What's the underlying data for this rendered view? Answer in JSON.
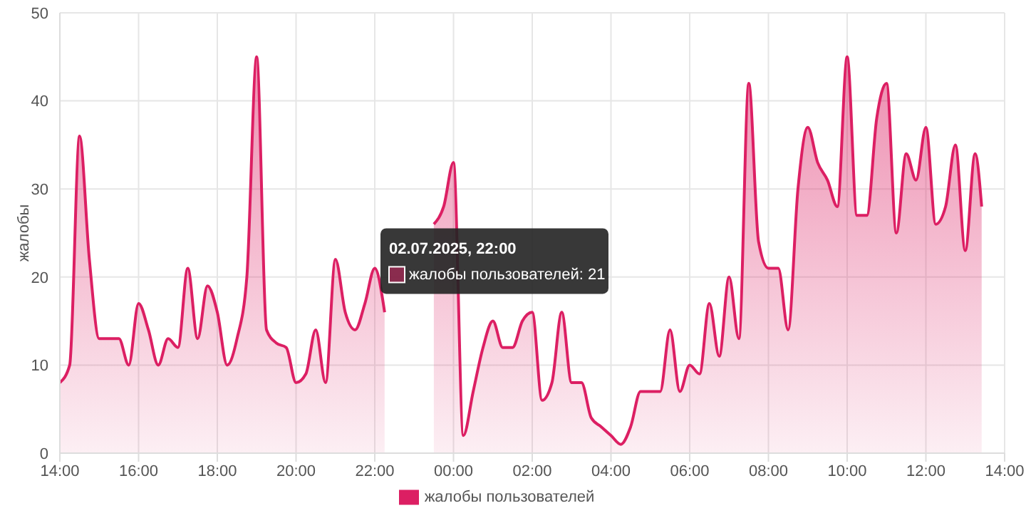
{
  "chart_data": {
    "type": "area",
    "ylabel": "жалобы",
    "x": [
      "2025-07-02T14:00",
      "2025-07-02T14:15",
      "2025-07-02T14:30",
      "2025-07-02T14:45",
      "2025-07-02T15:00",
      "2025-07-02T15:15",
      "2025-07-02T15:30",
      "2025-07-02T15:45",
      "2025-07-02T16:00",
      "2025-07-02T16:15",
      "2025-07-02T16:30",
      "2025-07-02T16:45",
      "2025-07-02T17:00",
      "2025-07-02T17:15",
      "2025-07-02T17:30",
      "2025-07-02T17:45",
      "2025-07-02T18:00",
      "2025-07-02T18:15",
      "2025-07-02T18:30",
      "2025-07-02T18:45",
      "2025-07-02T19:00",
      "2025-07-02T19:15",
      "2025-07-02T19:30",
      "2025-07-02T19:45",
      "2025-07-02T20:00",
      "2025-07-02T20:15",
      "2025-07-02T20:30",
      "2025-07-02T20:45",
      "2025-07-02T21:00",
      "2025-07-02T21:15",
      "2025-07-02T21:30",
      "2025-07-02T21:45",
      "2025-07-02T22:00",
      "2025-07-02T22:15",
      "2025-07-02T22:30",
      "2025-07-02T22:45",
      "2025-07-02T23:00",
      "2025-07-02T23:15",
      "2025-07-02T23:30",
      "2025-07-02T23:45",
      "2025-07-03T00:00",
      "2025-07-03T00:15",
      "2025-07-03T00:30",
      "2025-07-03T00:45",
      "2025-07-03T01:00",
      "2025-07-03T01:15",
      "2025-07-03T01:30",
      "2025-07-03T01:45",
      "2025-07-03T02:00",
      "2025-07-03T02:15",
      "2025-07-03T02:30",
      "2025-07-03T02:45",
      "2025-07-03T03:00",
      "2025-07-03T03:15",
      "2025-07-03T03:30",
      "2025-07-03T03:45",
      "2025-07-03T04:00",
      "2025-07-03T04:15",
      "2025-07-03T04:30",
      "2025-07-03T04:45",
      "2025-07-03T05:00",
      "2025-07-03T05:15",
      "2025-07-03T05:30",
      "2025-07-03T05:45",
      "2025-07-03T06:00",
      "2025-07-03T06:15",
      "2025-07-03T06:30",
      "2025-07-03T06:45",
      "2025-07-03T07:00",
      "2025-07-03T07:15",
      "2025-07-03T07:30",
      "2025-07-03T07:45",
      "2025-07-03T08:00",
      "2025-07-03T08:15",
      "2025-07-03T08:30",
      "2025-07-03T08:45",
      "2025-07-03T09:00",
      "2025-07-03T09:15",
      "2025-07-03T09:30",
      "2025-07-03T09:45",
      "2025-07-03T10:00",
      "2025-07-03T10:15",
      "2025-07-03T10:30",
      "2025-07-03T10:45",
      "2025-07-03T11:00",
      "2025-07-03T11:15",
      "2025-07-03T11:30",
      "2025-07-03T11:45",
      "2025-07-03T12:00",
      "2025-07-03T12:15",
      "2025-07-03T12:30",
      "2025-07-03T12:45",
      "2025-07-03T13:00",
      "2025-07-03T13:15",
      "2025-07-03T13:25"
    ],
    "series": [
      {
        "name": "жалобы пользователей",
        "color": "#dc1f63",
        "values": [
          8,
          10,
          36,
          22,
          13,
          13,
          13,
          10,
          17,
          14,
          10,
          13,
          12,
          21,
          13,
          19,
          16,
          10,
          13,
          20,
          45,
          14,
          12.5,
          12,
          8,
          9,
          14,
          8,
          22,
          16,
          14,
          17,
          21,
          16,
          null,
          null,
          null,
          null,
          26,
          28,
          33,
          2,
          7,
          12,
          15,
          12,
          12,
          15,
          16,
          6,
          8,
          16,
          8,
          8,
          4,
          3,
          2,
          1,
          3,
          7,
          7,
          7,
          14,
          7,
          10,
          9,
          17,
          11,
          20,
          13,
          42,
          24,
          21,
          21,
          14,
          30,
          37,
          33,
          31,
          28,
          45,
          27,
          27,
          38,
          42,
          25,
          34,
          31,
          37,
          26,
          28,
          35,
          23,
          34,
          28
        ]
      }
    ],
    "xlim": [
      "2025-07-02T14:00",
      "2025-07-03T14:00"
    ],
    "xticks": [
      {
        "value": "2025-07-02T14:00",
        "label": "14:00"
      },
      {
        "value": "2025-07-02T16:00",
        "label": "16:00"
      },
      {
        "value": "2025-07-02T18:00",
        "label": "18:00"
      },
      {
        "value": "2025-07-02T20:00",
        "label": "20:00"
      },
      {
        "value": "2025-07-02T22:00",
        "label": "22:00"
      },
      {
        "value": "2025-07-03T00:00",
        "label": "00:00"
      },
      {
        "value": "2025-07-03T02:00",
        "label": "02:00"
      },
      {
        "value": "2025-07-03T04:00",
        "label": "04:00"
      },
      {
        "value": "2025-07-03T06:00",
        "label": "06:00"
      },
      {
        "value": "2025-07-03T08:00",
        "label": "08:00"
      },
      {
        "value": "2025-07-03T10:00",
        "label": "10:00"
      },
      {
        "value": "2025-07-03T12:00",
        "label": "12:00"
      },
      {
        "value": "2025-07-03T14:00",
        "label": "14:00"
      }
    ],
    "ylim": [
      0,
      50
    ],
    "yticks": [
      0,
      10,
      20,
      30,
      40,
      50
    ],
    "grid": true,
    "legend": "bottom",
    "marker": "none",
    "line_style": "solid",
    "annotations": [
      {
        "text": "02.07.2025, 22:00",
        "x": "2025-07-02T22:00",
        "y": 21
      },
      "жалобы пользователей: 21"
    ]
  }
}
